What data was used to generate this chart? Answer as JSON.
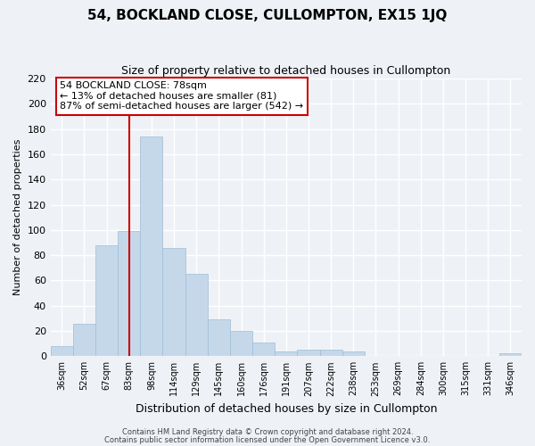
{
  "title": "54, BOCKLAND CLOSE, CULLOMPTON, EX15 1JQ",
  "subtitle": "Size of property relative to detached houses in Cullompton",
  "xlabel": "Distribution of detached houses by size in Cullompton",
  "ylabel": "Number of detached properties",
  "bar_labels": [
    "36sqm",
    "52sqm",
    "67sqm",
    "83sqm",
    "98sqm",
    "114sqm",
    "129sqm",
    "145sqm",
    "160sqm",
    "176sqm",
    "191sqm",
    "207sqm",
    "222sqm",
    "238sqm",
    "253sqm",
    "269sqm",
    "284sqm",
    "300sqm",
    "315sqm",
    "331sqm",
    "346sqm"
  ],
  "bar_values": [
    8,
    26,
    88,
    99,
    174,
    86,
    65,
    29,
    20,
    11,
    4,
    5,
    5,
    4,
    0,
    0,
    0,
    0,
    0,
    0,
    2
  ],
  "bar_color": "#c5d8ea",
  "bar_edgecolor": "#9fbdd4",
  "bar_width": 1.0,
  "vline_x": 3.0,
  "vline_color": "#cc0000",
  "ylim": [
    0,
    220
  ],
  "yticks": [
    0,
    20,
    40,
    60,
    80,
    100,
    120,
    140,
    160,
    180,
    200,
    220
  ],
  "annotation_title": "54 BOCKLAND CLOSE: 78sqm",
  "annotation_line1": "← 13% of detached houses are smaller (81)",
  "annotation_line2": "87% of semi-detached houses are larger (542) →",
  "annotation_box_color": "#ffffff",
  "annotation_box_edgecolor": "#cc0000",
  "footer1": "Contains HM Land Registry data © Crown copyright and database right 2024.",
  "footer2": "Contains public sector information licensed under the Open Government Licence v3.0.",
  "background_color": "#eef2f7",
  "grid_color": "#ffffff",
  "fig_width": 6.0,
  "fig_height": 5.0
}
